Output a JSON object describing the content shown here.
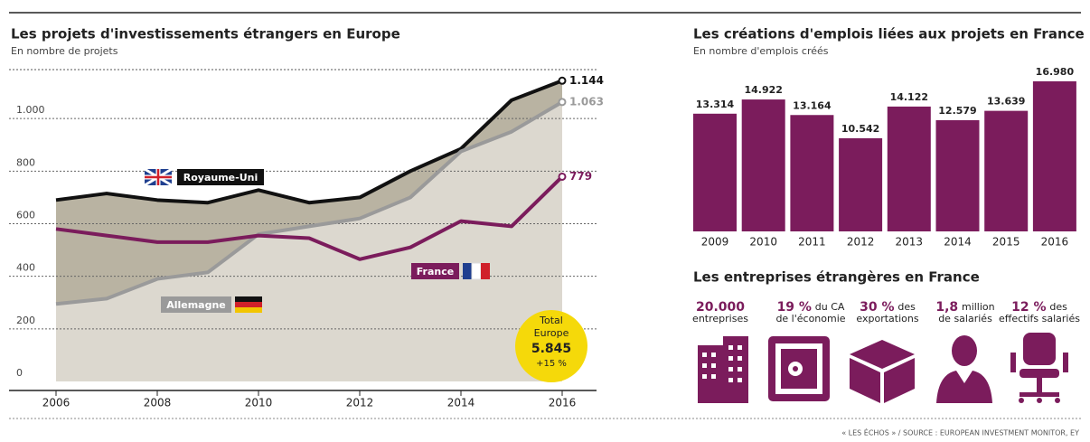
{
  "chart_data": [
    {
      "type": "line",
      "title": "Les projets d'investissements étrangers en Europe",
      "subtitle": "En nombre de projets",
      "x": [
        2006,
        2007,
        2008,
        2009,
        2010,
        2011,
        2012,
        2013,
        2014,
        2015,
        2016
      ],
      "series": [
        {
          "name": "Royaume-Uni",
          "color": "#111111",
          "values": [
            690,
            715,
            690,
            680,
            728,
            680,
            700,
            800,
            885,
            1070,
            1144
          ],
          "value_labels": [
            null,
            null,
            null,
            null,
            null,
            null,
            null,
            null,
            null,
            null,
            "1.144"
          ]
        },
        {
          "name": "Allemagne",
          "color": "#9a9a9a",
          "values": [
            295,
            315,
            390,
            415,
            560,
            590,
            620,
            700,
            875,
            950,
            1063
          ],
          "value_labels": [
            null,
            null,
            null,
            null,
            null,
            null,
            null,
            null,
            null,
            null,
            "1.063"
          ]
        },
        {
          "name": "France",
          "color": "#7b1c5c",
          "values": [
            580,
            555,
            530,
            530,
            555,
            545,
            465,
            510,
            610,
            590,
            779
          ],
          "value_labels": [
            null,
            null,
            null,
            null,
            null,
            null,
            null,
            null,
            null,
            null,
            "779"
          ]
        }
      ],
      "xlim": [
        2006,
        2016
      ],
      "xticks": [
        2006,
        2008,
        2010,
        2012,
        2014,
        2016
      ],
      "ylim": [
        0,
        1200
      ],
      "yticks": [
        0,
        200,
        400,
        600,
        800,
        {
          "value": 1000,
          "label": "1.000"
        }
      ],
      "grid": true,
      "annotation": [
        "Total",
        "Europe",
        "5.845",
        "+15 %"
      ]
    },
    {
      "type": "bar",
      "title": "Les créations d'emplois liées aux projets en France",
      "subtitle": "En nombre d'emplois créés",
      "categories": [
        "2009",
        "2010",
        "2011",
        "2012",
        "2013",
        "2014",
        "2015",
        "2016"
      ],
      "values": [
        13314,
        14922,
        13164,
        10542,
        14122,
        12579,
        13639,
        16980
      ],
      "value_labels": [
        "13.314",
        "14.922",
        "13.164",
        "10.542",
        "14.122",
        "12.579",
        "13.639",
        "16.980"
      ],
      "color": "#7b1c5c"
    }
  ],
  "stats": {
    "title": "Les entreprises étrangères en France",
    "items": [
      {
        "bold": "20.000",
        "suffix": "",
        "line2": "entreprises"
      },
      {
        "bold": "19 %",
        "suffix": "du CA",
        "line2": "de l'économie"
      },
      {
        "bold": "30 %",
        "suffix": "des",
        "line2": "exportations"
      },
      {
        "bold": "1,8",
        "suffix": "million",
        "line2": "de salariés"
      },
      {
        "bold": "12 %",
        "suffix": "des",
        "line2": "effectifs salariés"
      }
    ]
  },
  "footer": "« LES ÉCHOS » / SOURCE : EUROPEAN INVESTMENT MONITOR, EY"
}
